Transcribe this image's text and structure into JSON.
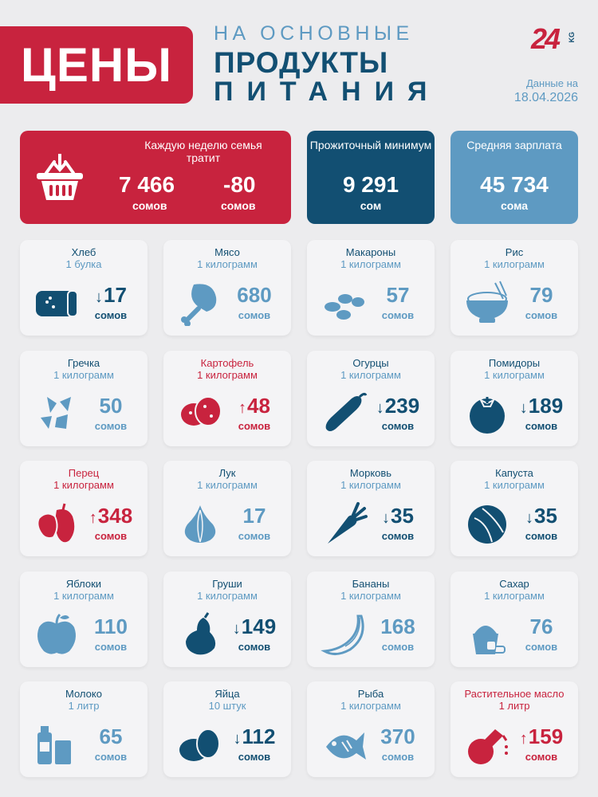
{
  "header": {
    "title": "ЦЕНЫ",
    "line1": "НА ОСНОВНЫЕ",
    "line2": "ПРОДУКТЫ",
    "line3": "ПИТАНИЯ",
    "logo_text": "24",
    "logo_kg": "KG",
    "date_label": "Данные на",
    "date_value": "18.04.2026"
  },
  "summary": {
    "weekly": {
      "title": "Каждую неделю семья тратит",
      "value": "7 466",
      "unit": "сомов",
      "change": "-80",
      "change_unit": "сомов"
    },
    "minimum": {
      "title": "Прожиточный минимум",
      "value": "9 291",
      "unit": "сом"
    },
    "salary": {
      "title": "Средняя зарплата",
      "value": "45 734",
      "unit": "сома"
    }
  },
  "colors": {
    "red": "#c8233e",
    "dark_blue": "#124f72",
    "light_blue": "#5e9ac2",
    "background": "#ececee"
  },
  "products": [
    {
      "name": "Хлеб",
      "unit": "1 булка",
      "value": "17",
      "trend": "down",
      "currency": "сомов",
      "icon": "bread-icon"
    },
    {
      "name": "Мясо",
      "unit": "1 килограмм",
      "value": "680",
      "trend": "none",
      "currency": "сомов",
      "icon": "meat-icon"
    },
    {
      "name": "Макароны",
      "unit": "1 килограмм",
      "value": "57",
      "trend": "none",
      "currency": "сомов",
      "icon": "pasta-icon"
    },
    {
      "name": "Рис",
      "unit": "1 килограмм",
      "value": "79",
      "trend": "none",
      "currency": "сомов",
      "icon": "rice-bowl-icon"
    },
    {
      "name": "Гречка",
      "unit": "1 килограмм",
      "value": "50",
      "trend": "none",
      "currency": "сомов",
      "icon": "buckwheat-icon"
    },
    {
      "name": "Картофель",
      "unit": "1 килограмм",
      "value": "48",
      "trend": "up",
      "currency": "сомов",
      "icon": "potato-icon"
    },
    {
      "name": "Огурцы",
      "unit": "1 килограмм",
      "value": "239",
      "trend": "down",
      "currency": "сомов",
      "icon": "cucumber-icon"
    },
    {
      "name": "Помидоры",
      "unit": "1 килограмм",
      "value": "189",
      "trend": "down",
      "currency": "сомов",
      "icon": "tomato-icon"
    },
    {
      "name": "Перец",
      "unit": "1 килограмм",
      "value": "348",
      "trend": "up",
      "currency": "сомов",
      "icon": "pepper-icon"
    },
    {
      "name": "Лук",
      "unit": "1 килограмм",
      "value": "17",
      "trend": "none",
      "currency": "сомов",
      "icon": "onion-icon"
    },
    {
      "name": "Морковь",
      "unit": "1 килограмм",
      "value": "35",
      "trend": "down",
      "currency": "сомов",
      "icon": "carrot-icon"
    },
    {
      "name": "Капуста",
      "unit": "1 килограмм",
      "value": "35",
      "trend": "down",
      "currency": "сомов",
      "icon": "cabbage-icon"
    },
    {
      "name": "Яблоки",
      "unit": "1 килограмм",
      "value": "110",
      "trend": "none",
      "currency": "сомов",
      "icon": "apple-icon"
    },
    {
      "name": "Груши",
      "unit": "1 килограмм",
      "value": "149",
      "trend": "down",
      "currency": "сомов",
      "icon": "pear-icon"
    },
    {
      "name": "Бананы",
      "unit": "1 килограмм",
      "value": "168",
      "trend": "none",
      "currency": "сомов",
      "icon": "banana-icon"
    },
    {
      "name": "Сахар",
      "unit": "1 килограмм",
      "value": "76",
      "trend": "none",
      "currency": "сомов",
      "icon": "sugar-icon"
    },
    {
      "name": "Молоко",
      "unit": "1 литр",
      "value": "65",
      "trend": "none",
      "currency": "сомов",
      "icon": "milk-icon"
    },
    {
      "name": "Яйца",
      "unit": "10 штук",
      "value": "112",
      "trend": "down",
      "currency": "сомов",
      "icon": "eggs-icon"
    },
    {
      "name": "Рыба",
      "unit": "1 килограмм",
      "value": "370",
      "trend": "none",
      "currency": "сомов",
      "icon": "fish-icon"
    },
    {
      "name": "Растительное масло",
      "unit": "1 литр",
      "value": "159",
      "trend": "up",
      "currency": "сомов",
      "icon": "oil-icon"
    }
  ]
}
